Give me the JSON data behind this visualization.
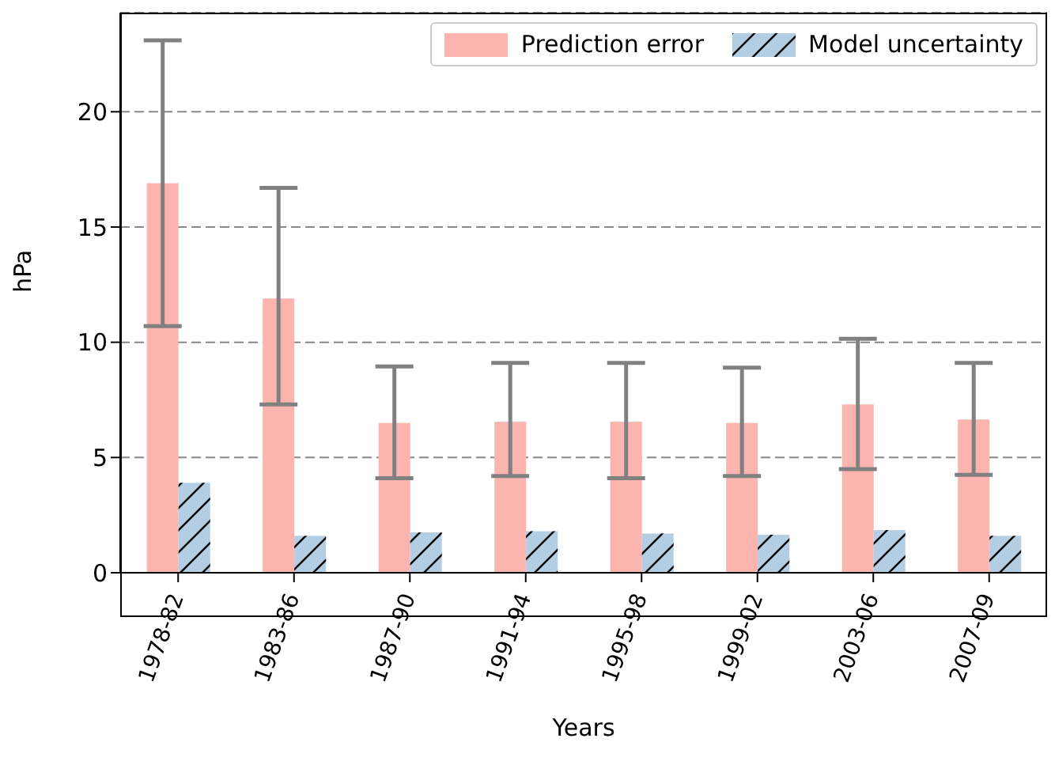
{
  "chart_data": {
    "type": "bar",
    "xlabel": "Years",
    "ylabel": "hPa",
    "categories": [
      "1978-82",
      "1983-86",
      "1987-90",
      "1991-94",
      "1995-98",
      "1999-02",
      "2003-06",
      "2007-09"
    ],
    "series": [
      {
        "name": "Prediction error",
        "color": "#fbb4ae",
        "values": [
          16.9,
          11.9,
          6.5,
          6.55,
          6.55,
          6.5,
          7.3,
          6.65
        ],
        "errors": [
          [
            10.7,
            23.1
          ],
          [
            7.3,
            16.7
          ],
          [
            4.1,
            8.95
          ],
          [
            4.2,
            9.1
          ],
          [
            4.1,
            9.1
          ],
          [
            4.2,
            8.9
          ],
          [
            4.5,
            10.15
          ],
          [
            4.25,
            9.1
          ]
        ]
      },
      {
        "name": "Model uncertainty",
        "color": "#b3cde3",
        "values": [
          3.9,
          1.6,
          1.75,
          1.8,
          1.7,
          1.65,
          1.85,
          1.6
        ]
      }
    ],
    "ylim": [
      0,
      24.3
    ],
    "yticks": [
      0,
      5,
      10,
      15,
      20
    ],
    "grid": "y",
    "legend": "top right"
  }
}
